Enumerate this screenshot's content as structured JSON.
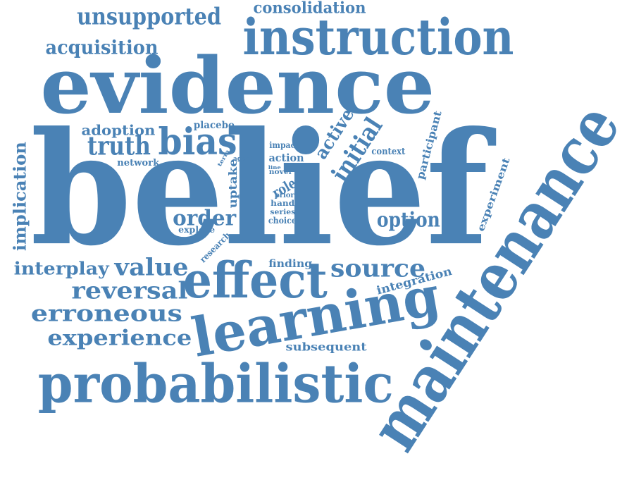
{
  "style": {
    "color": "#4a82b5",
    "background": "#ffffff"
  },
  "words": [
    {
      "text": "belief"
    },
    {
      "text": "evidence"
    },
    {
      "text": "maintenance"
    },
    {
      "text": "instruction"
    },
    {
      "text": "learning"
    },
    {
      "text": "probabilistic"
    },
    {
      "text": "effect"
    },
    {
      "text": "bias"
    },
    {
      "text": "unsupported"
    },
    {
      "text": "consolidation"
    },
    {
      "text": "acquisition"
    },
    {
      "text": "initial"
    },
    {
      "text": "truth"
    },
    {
      "text": "adoption"
    },
    {
      "text": "active"
    },
    {
      "text": "placebo"
    },
    {
      "text": "implication"
    },
    {
      "text": "network"
    },
    {
      "text": "order"
    },
    {
      "text": "explore"
    },
    {
      "text": "uptake"
    },
    {
      "text": "term"
    },
    {
      "text": "agent"
    },
    {
      "text": "impact"
    },
    {
      "text": "action"
    },
    {
      "text": "line"
    },
    {
      "text": "novel"
    },
    {
      "text": "role"
    },
    {
      "text": "prior"
    },
    {
      "text": "hand"
    },
    {
      "text": "series"
    },
    {
      "text": "choice"
    },
    {
      "text": "context"
    },
    {
      "text": "participant"
    },
    {
      "text": "option"
    },
    {
      "text": "experiment"
    },
    {
      "text": "research"
    },
    {
      "text": "finding"
    },
    {
      "text": "interplay"
    },
    {
      "text": "value"
    },
    {
      "text": "source"
    },
    {
      "text": "reversal"
    },
    {
      "text": "integration"
    },
    {
      "text": "erroneous"
    },
    {
      "text": "experience"
    },
    {
      "text": "subsequent"
    }
  ]
}
